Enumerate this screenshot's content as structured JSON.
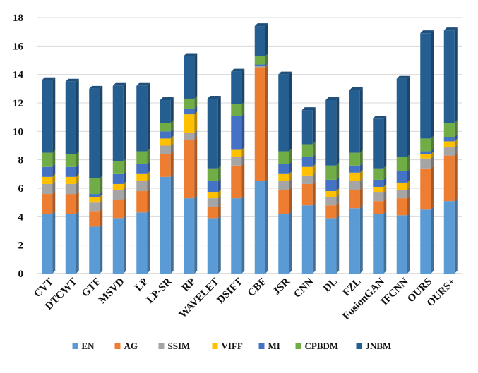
{
  "chart_data": {
    "type": "bar",
    "stacked": true,
    "ylim": [
      0,
      18
    ],
    "yticks": [
      "0",
      "2",
      "4",
      "6",
      "8",
      "10",
      "12",
      "14",
      "16",
      "18"
    ],
    "grid": true,
    "legend_position": "bottom",
    "categories": [
      "CVT",
      "DTCWT",
      "GTF",
      "MSVD",
      "LP",
      "LP-SR",
      "RP",
      "WAVELET",
      "DSIFT",
      "CBF",
      "JSR",
      "CNN",
      "DL",
      "FZL",
      "FusionGAN",
      "IFCNN",
      "OURS",
      "OURS+"
    ],
    "series": [
      {
        "name": "EN",
        "color": "#5B9BD5",
        "values": [
          4.2,
          4.2,
          3.3,
          3.9,
          4.3,
          6.8,
          5.3,
          3.9,
          5.3,
          6.5,
          4.2,
          4.8,
          3.9,
          4.6,
          4.2,
          4.1,
          4.5,
          5.1
        ]
      },
      {
        "name": "AG",
        "color": "#ED7D31",
        "values": [
          1.4,
          1.4,
          1.1,
          1.3,
          1.5,
          1.6,
          4.1,
          0.8,
          2.3,
          8.0,
          1.7,
          1.5,
          0.9,
          1.3,
          0.9,
          1.2,
          2.9,
          3.2
        ]
      },
      {
        "name": "SSIM",
        "color": "#A5A5A5",
        "values": [
          0.7,
          0.7,
          0.6,
          0.7,
          0.7,
          0.6,
          0.5,
          0.6,
          0.6,
          0.1,
          0.6,
          0.6,
          0.6,
          0.6,
          0.6,
          0.6,
          0.7,
          0.6
        ]
      },
      {
        "name": "VIFF",
        "color": "#FFC000",
        "values": [
          0.5,
          0.5,
          0.4,
          0.4,
          0.5,
          0.5,
          1.3,
          0.4,
          0.5,
          0.0,
          0.5,
          0.6,
          0.4,
          0.6,
          0.4,
          0.5,
          0.3,
          0.4
        ]
      },
      {
        "name": "MI",
        "color": "#4472C4",
        "values": [
          0.7,
          0.7,
          0.2,
          0.7,
          0.7,
          0.5,
          0.4,
          0.8,
          2.4,
          0.1,
          0.7,
          0.7,
          0.8,
          0.5,
          0.5,
          0.8,
          0.2,
          0.3
        ]
      },
      {
        "name": "CPBDM",
        "color": "#70AD47",
        "values": [
          1.0,
          0.9,
          1.1,
          0.9,
          0.9,
          0.6,
          0.7,
          0.9,
          0.8,
          0.6,
          0.9,
          0.9,
          1.0,
          0.9,
          0.8,
          1.0,
          0.9,
          1.0
        ]
      },
      {
        "name": "JNBM",
        "color": "#255E91",
        "values": [
          5.1,
          5.1,
          6.3,
          5.3,
          4.6,
          1.6,
          3.0,
          4.9,
          2.3,
          2.1,
          5.4,
          2.4,
          4.6,
          4.4,
          3.5,
          5.5,
          7.4,
          6.5
        ]
      }
    ]
  }
}
